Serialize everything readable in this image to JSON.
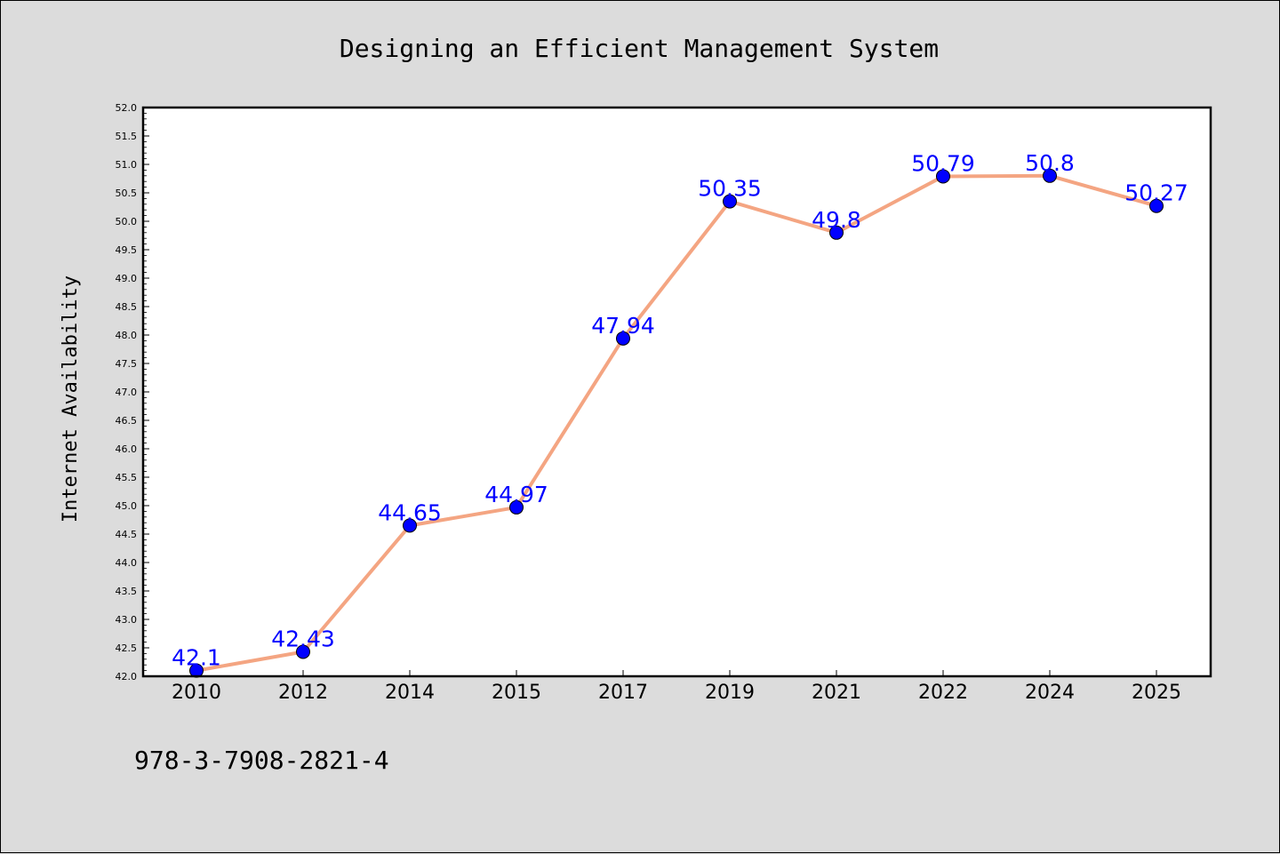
{
  "chart_data": {
    "type": "line",
    "title": "Designing an Efficient Management System",
    "xlabel": "",
    "ylabel": "Internet Availability",
    "categories": [
      "2010",
      "2012",
      "2014",
      "2015",
      "2017",
      "2019",
      "2021",
      "2022",
      "2024",
      "2025"
    ],
    "series": [
      {
        "values": [
          42.1,
          42.43,
          44.65,
          44.97,
          47.94,
          50.35,
          49.8,
          50.79,
          50.8,
          50.27
        ],
        "labels": [
          "42.1",
          "42.43",
          "44.65",
          "44.97",
          "47.94",
          "50.35",
          "49.8",
          "50.79",
          "50.8",
          "50.27"
        ],
        "line_color": "#f4a582",
        "marker_color": "#0000ff"
      }
    ],
    "ylim": [
      42.0,
      52.0
    ],
    "yticks": [
      "42.0",
      "42.5",
      "43.0",
      "43.5",
      "44.0",
      "44.5",
      "45.0",
      "45.5",
      "46.0",
      "46.5",
      "47.0",
      "47.5",
      "48.0",
      "48.5",
      "49.0",
      "49.5",
      "50.0",
      "50.5",
      "51.0",
      "51.5",
      "52.0"
    ],
    "grid": false,
    "data_label_color": "#0000ff"
  },
  "footer": {
    "isbn": "978-3-7908-2821-4"
  }
}
